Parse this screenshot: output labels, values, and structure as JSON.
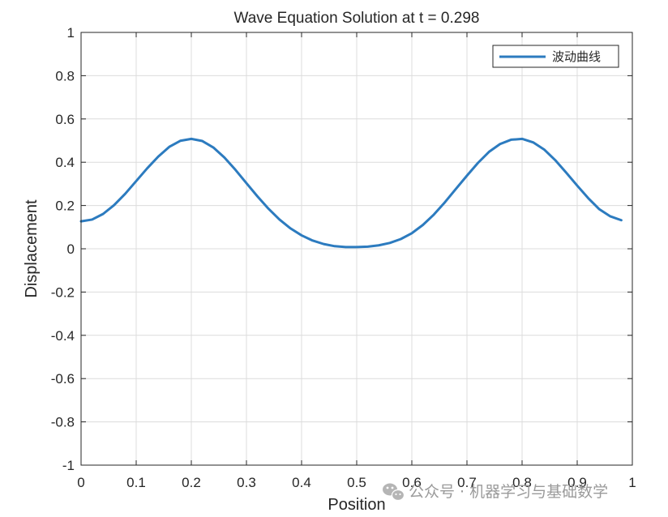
{
  "chart_data": {
    "type": "line",
    "title": "Wave Equation Solution at t = 0.298",
    "xlabel": "Position",
    "ylabel": "Displacement",
    "xlim": [
      0,
      1
    ],
    "ylim": [
      -1,
      1
    ],
    "grid": true,
    "legend_position": "top-right",
    "x_ticks": [
      "0",
      "0.1",
      "0.2",
      "0.3",
      "0.4",
      "0.5",
      "0.6",
      "0.7",
      "0.8",
      "0.9",
      "1"
    ],
    "y_ticks": [
      "1",
      "0.8",
      "0.6",
      "0.4",
      "0.2",
      "0",
      "-0.2",
      "-0.4",
      "-0.6",
      "-0.8",
      "-1"
    ],
    "series": [
      {
        "name": "波动曲线",
        "color": "#2c7bbf",
        "x": [
          0.0,
          0.02,
          0.04,
          0.06,
          0.08,
          0.1,
          0.12,
          0.14,
          0.16,
          0.18,
          0.2,
          0.22,
          0.24,
          0.26,
          0.28,
          0.3,
          0.32,
          0.34,
          0.36,
          0.38,
          0.4,
          0.42,
          0.44,
          0.46,
          0.48,
          0.5,
          0.52,
          0.54,
          0.56,
          0.58,
          0.6,
          0.62,
          0.64,
          0.66,
          0.68,
          0.7,
          0.72,
          0.74,
          0.76,
          0.78,
          0.8,
          0.82,
          0.84,
          0.86,
          0.88,
          0.9,
          0.92,
          0.94,
          0.96,
          0.98
        ],
        "y": [
          0.127,
          0.135,
          0.161,
          0.202,
          0.254,
          0.313,
          0.372,
          0.426,
          0.471,
          0.499,
          0.508,
          0.498,
          0.468,
          0.422,
          0.365,
          0.303,
          0.242,
          0.185,
          0.135,
          0.094,
          0.062,
          0.038,
          0.022,
          0.012,
          0.008,
          0.008,
          0.01,
          0.016,
          0.027,
          0.045,
          0.072,
          0.11,
          0.158,
          0.215,
          0.277,
          0.338,
          0.397,
          0.448,
          0.484,
          0.504,
          0.508,
          0.492,
          0.459,
          0.41,
          0.352,
          0.292,
          0.234,
          0.183,
          0.15,
          0.132
        ]
      }
    ]
  },
  "watermark": {
    "text": "公众号 · 机器学习与基础数学",
    "icon": "wechat-icon"
  }
}
